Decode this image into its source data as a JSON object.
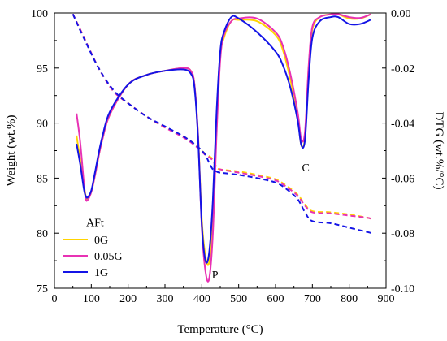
{
  "chart_data": {
    "type": "line",
    "xlabel": "Temperature (°C)",
    "ylabel_left": "Weight (wt.%)",
    "ylabel_right": "DTG (wt.%/°C)",
    "xlim": [
      0,
      900
    ],
    "ylim_left": [
      75,
      100
    ],
    "ylim_right": [
      -0.1,
      0.0
    ],
    "x_ticks": [
      0,
      100,
      200,
      300,
      400,
      500,
      600,
      700,
      800,
      900
    ],
    "y_left_ticks": [
      75,
      80,
      85,
      90,
      95,
      100
    ],
    "y_right_ticks": [
      -0.1,
      -0.08,
      -0.06,
      -0.04,
      -0.02,
      0.0
    ],
    "x_tick_labels": [
      "0",
      "100",
      "200",
      "300",
      "400",
      "500",
      "600",
      "700",
      "800",
      "900"
    ],
    "y_left_tick_labels": [
      "75",
      "80",
      "85",
      "90",
      "95",
      "100"
    ],
    "y_right_tick_labels": [
      "-0.10",
      "-0.08",
      "-0.06",
      "-0.04",
      "-0.02",
      "0.00"
    ],
    "legend_position": "bottom-left",
    "annotations": [
      {
        "text": "AFt",
        "x": 110,
        "y_dtg": -0.0775
      },
      {
        "text": "P",
        "x": 436,
        "y_dtg": -0.0965
      },
      {
        "text": "C",
        "x": 682,
        "y_dtg": -0.0575
      }
    ],
    "series": [
      {
        "name": "0G",
        "color": "#ffd400",
        "weight": {
          "x": [
            50,
            80,
            120,
            160,
            200,
            250,
            300,
            350,
            380,
            400,
            410,
            420,
            430,
            440,
            450,
            500,
            550,
            600,
            630,
            660,
            680,
            700,
            750,
            800,
            850,
            860
          ],
          "y": [
            99.9,
            97.8,
            95.0,
            92.9,
            91.8,
            90.6,
            89.6,
            88.8,
            88.1,
            87.5,
            87.2,
            87.0,
            86.7,
            86.0,
            85.8,
            85.6,
            85.3,
            84.9,
            84.3,
            83.5,
            82.6,
            82.0,
            81.9,
            81.7,
            81.4,
            81.3
          ]
        },
        "dtg": {
          "x": [
            60,
            70,
            80,
            85,
            90,
            100,
            110,
            120,
            130,
            150,
            200,
            250,
            300,
            350,
            370,
            380,
            390,
            400,
            410,
            420,
            430,
            440,
            450,
            460,
            480,
            500,
            550,
            600,
            620,
            640,
            660,
            670,
            680,
            690,
            700,
            720,
            750,
            770,
            800,
            830,
            858
          ],
          "y": [
            -0.0445,
            -0.0535,
            -0.0625,
            -0.0665,
            -0.0675,
            -0.065,
            -0.059,
            -0.052,
            -0.046,
            -0.037,
            -0.026,
            -0.0225,
            -0.021,
            -0.02,
            -0.021,
            -0.026,
            -0.045,
            -0.075,
            -0.0885,
            -0.0905,
            -0.074,
            -0.04,
            -0.016,
            -0.009,
            -0.003,
            -0.0025,
            -0.003,
            -0.008,
            -0.0135,
            -0.024,
            -0.038,
            -0.048,
            -0.045,
            -0.02,
            -0.006,
            -0.0015,
            -0.0005,
            -0.0005,
            -0.002,
            -0.002,
            -0.0005
          ]
        }
      },
      {
        "name": "0.05G",
        "color": "#e832b4",
        "weight": {
          "x": [
            50,
            80,
            120,
            160,
            200,
            250,
            300,
            350,
            380,
            400,
            410,
            420,
            430,
            440,
            450,
            500,
            550,
            600,
            630,
            660,
            680,
            700,
            750,
            800,
            850,
            860
          ],
          "y": [
            99.9,
            97.8,
            95.0,
            92.9,
            91.8,
            90.6,
            89.6,
            88.7,
            88.0,
            87.4,
            87.1,
            86.9,
            86.6,
            86.0,
            85.8,
            85.5,
            85.2,
            84.8,
            84.2,
            83.4,
            82.5,
            81.9,
            81.8,
            81.6,
            81.4,
            81.3
          ]
        },
        "dtg": {
          "x": [
            60,
            70,
            80,
            85,
            90,
            100,
            110,
            120,
            130,
            150,
            200,
            250,
            300,
            350,
            370,
            380,
            390,
            400,
            410,
            420,
            430,
            440,
            450,
            460,
            480,
            500,
            550,
            600,
            620,
            640,
            660,
            670,
            680,
            690,
            700,
            720,
            750,
            770,
            800,
            830,
            858
          ],
          "y": [
            -0.0365,
            -0.047,
            -0.062,
            -0.0675,
            -0.068,
            -0.065,
            -0.059,
            -0.052,
            -0.046,
            -0.037,
            -0.026,
            -0.0225,
            -0.021,
            -0.02,
            -0.021,
            -0.026,
            -0.045,
            -0.078,
            -0.094,
            -0.0965,
            -0.08,
            -0.044,
            -0.017,
            -0.008,
            -0.003,
            -0.002,
            -0.002,
            -0.007,
            -0.012,
            -0.022,
            -0.036,
            -0.046,
            -0.043,
            -0.019,
            -0.005,
            -0.0015,
            -0.0005,
            -0.0004,
            -0.0015,
            -0.0018,
            -0.0005
          ]
        }
      },
      {
        "name": "1G",
        "color": "#1414e6",
        "weight": {
          "x": [
            50,
            80,
            120,
            160,
            200,
            250,
            300,
            350,
            380,
            400,
            410,
            420,
            430,
            440,
            450,
            500,
            550,
            600,
            630,
            660,
            680,
            700,
            750,
            800,
            850,
            860
          ],
          "y": [
            99.9,
            97.7,
            95.0,
            93.0,
            91.8,
            90.6,
            89.7,
            88.8,
            88.1,
            87.5,
            87.1,
            86.4,
            85.8,
            85.6,
            85.5,
            85.3,
            85.0,
            84.6,
            84.0,
            83.1,
            81.9,
            81.1,
            80.9,
            80.5,
            80.1,
            80.0
          ]
        },
        "dtg": {
          "x": [
            60,
            70,
            80,
            85,
            90,
            100,
            110,
            120,
            130,
            150,
            200,
            250,
            300,
            350,
            370,
            380,
            390,
            400,
            410,
            420,
            430,
            440,
            450,
            460,
            480,
            500,
            550,
            600,
            620,
            640,
            660,
            670,
            680,
            690,
            700,
            720,
            750,
            770,
            800,
            830,
            858
          ],
          "y": [
            -0.0475,
            -0.055,
            -0.064,
            -0.0665,
            -0.067,
            -0.0645,
            -0.058,
            -0.051,
            -0.045,
            -0.036,
            -0.026,
            -0.0225,
            -0.021,
            -0.0205,
            -0.022,
            -0.027,
            -0.046,
            -0.077,
            -0.09,
            -0.087,
            -0.068,
            -0.036,
            -0.014,
            -0.007,
            -0.0015,
            -0.002,
            -0.007,
            -0.014,
            -0.019,
            -0.027,
            -0.039,
            -0.048,
            -0.046,
            -0.024,
            -0.009,
            -0.003,
            -0.0015,
            -0.0015,
            -0.004,
            -0.004,
            -0.0025
          ]
        }
      }
    ]
  }
}
